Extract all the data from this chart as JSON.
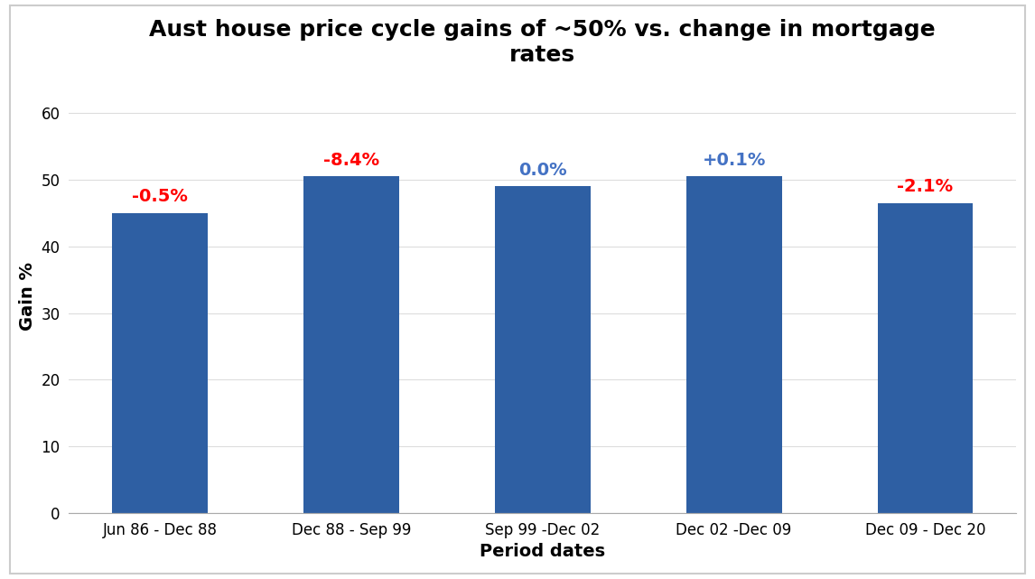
{
  "title": "Aust house price cycle gains of ~50% vs. change in mortgage\nrates",
  "xlabel": "Period dates",
  "ylabel": "Gain %",
  "categories": [
    "Jun 86 - Dec 88",
    "Dec 88 - Sep 99",
    "Sep 99 -Dec 02",
    "Dec 02 -Dec 09",
    "Dec 09 - Dec 20"
  ],
  "values": [
    45,
    50.5,
    49,
    50.5,
    46.5
  ],
  "bar_color": "#2E5FA3",
  "annotations": [
    "-0.5%",
    "-8.4%",
    "0.0%",
    "+0.1%",
    "-2.1%"
  ],
  "annotation_colors": [
    "red",
    "red",
    "#4472C4",
    "#4472C4",
    "red"
  ],
  "ylim": [
    0,
    65
  ],
  "yticks": [
    0,
    10,
    20,
    30,
    40,
    50,
    60
  ],
  "title_fontsize": 18,
  "axis_label_fontsize": 14,
  "tick_fontsize": 12,
  "annotation_fontsize": 14,
  "background_color": "#ffffff",
  "border_color": "#cccccc"
}
